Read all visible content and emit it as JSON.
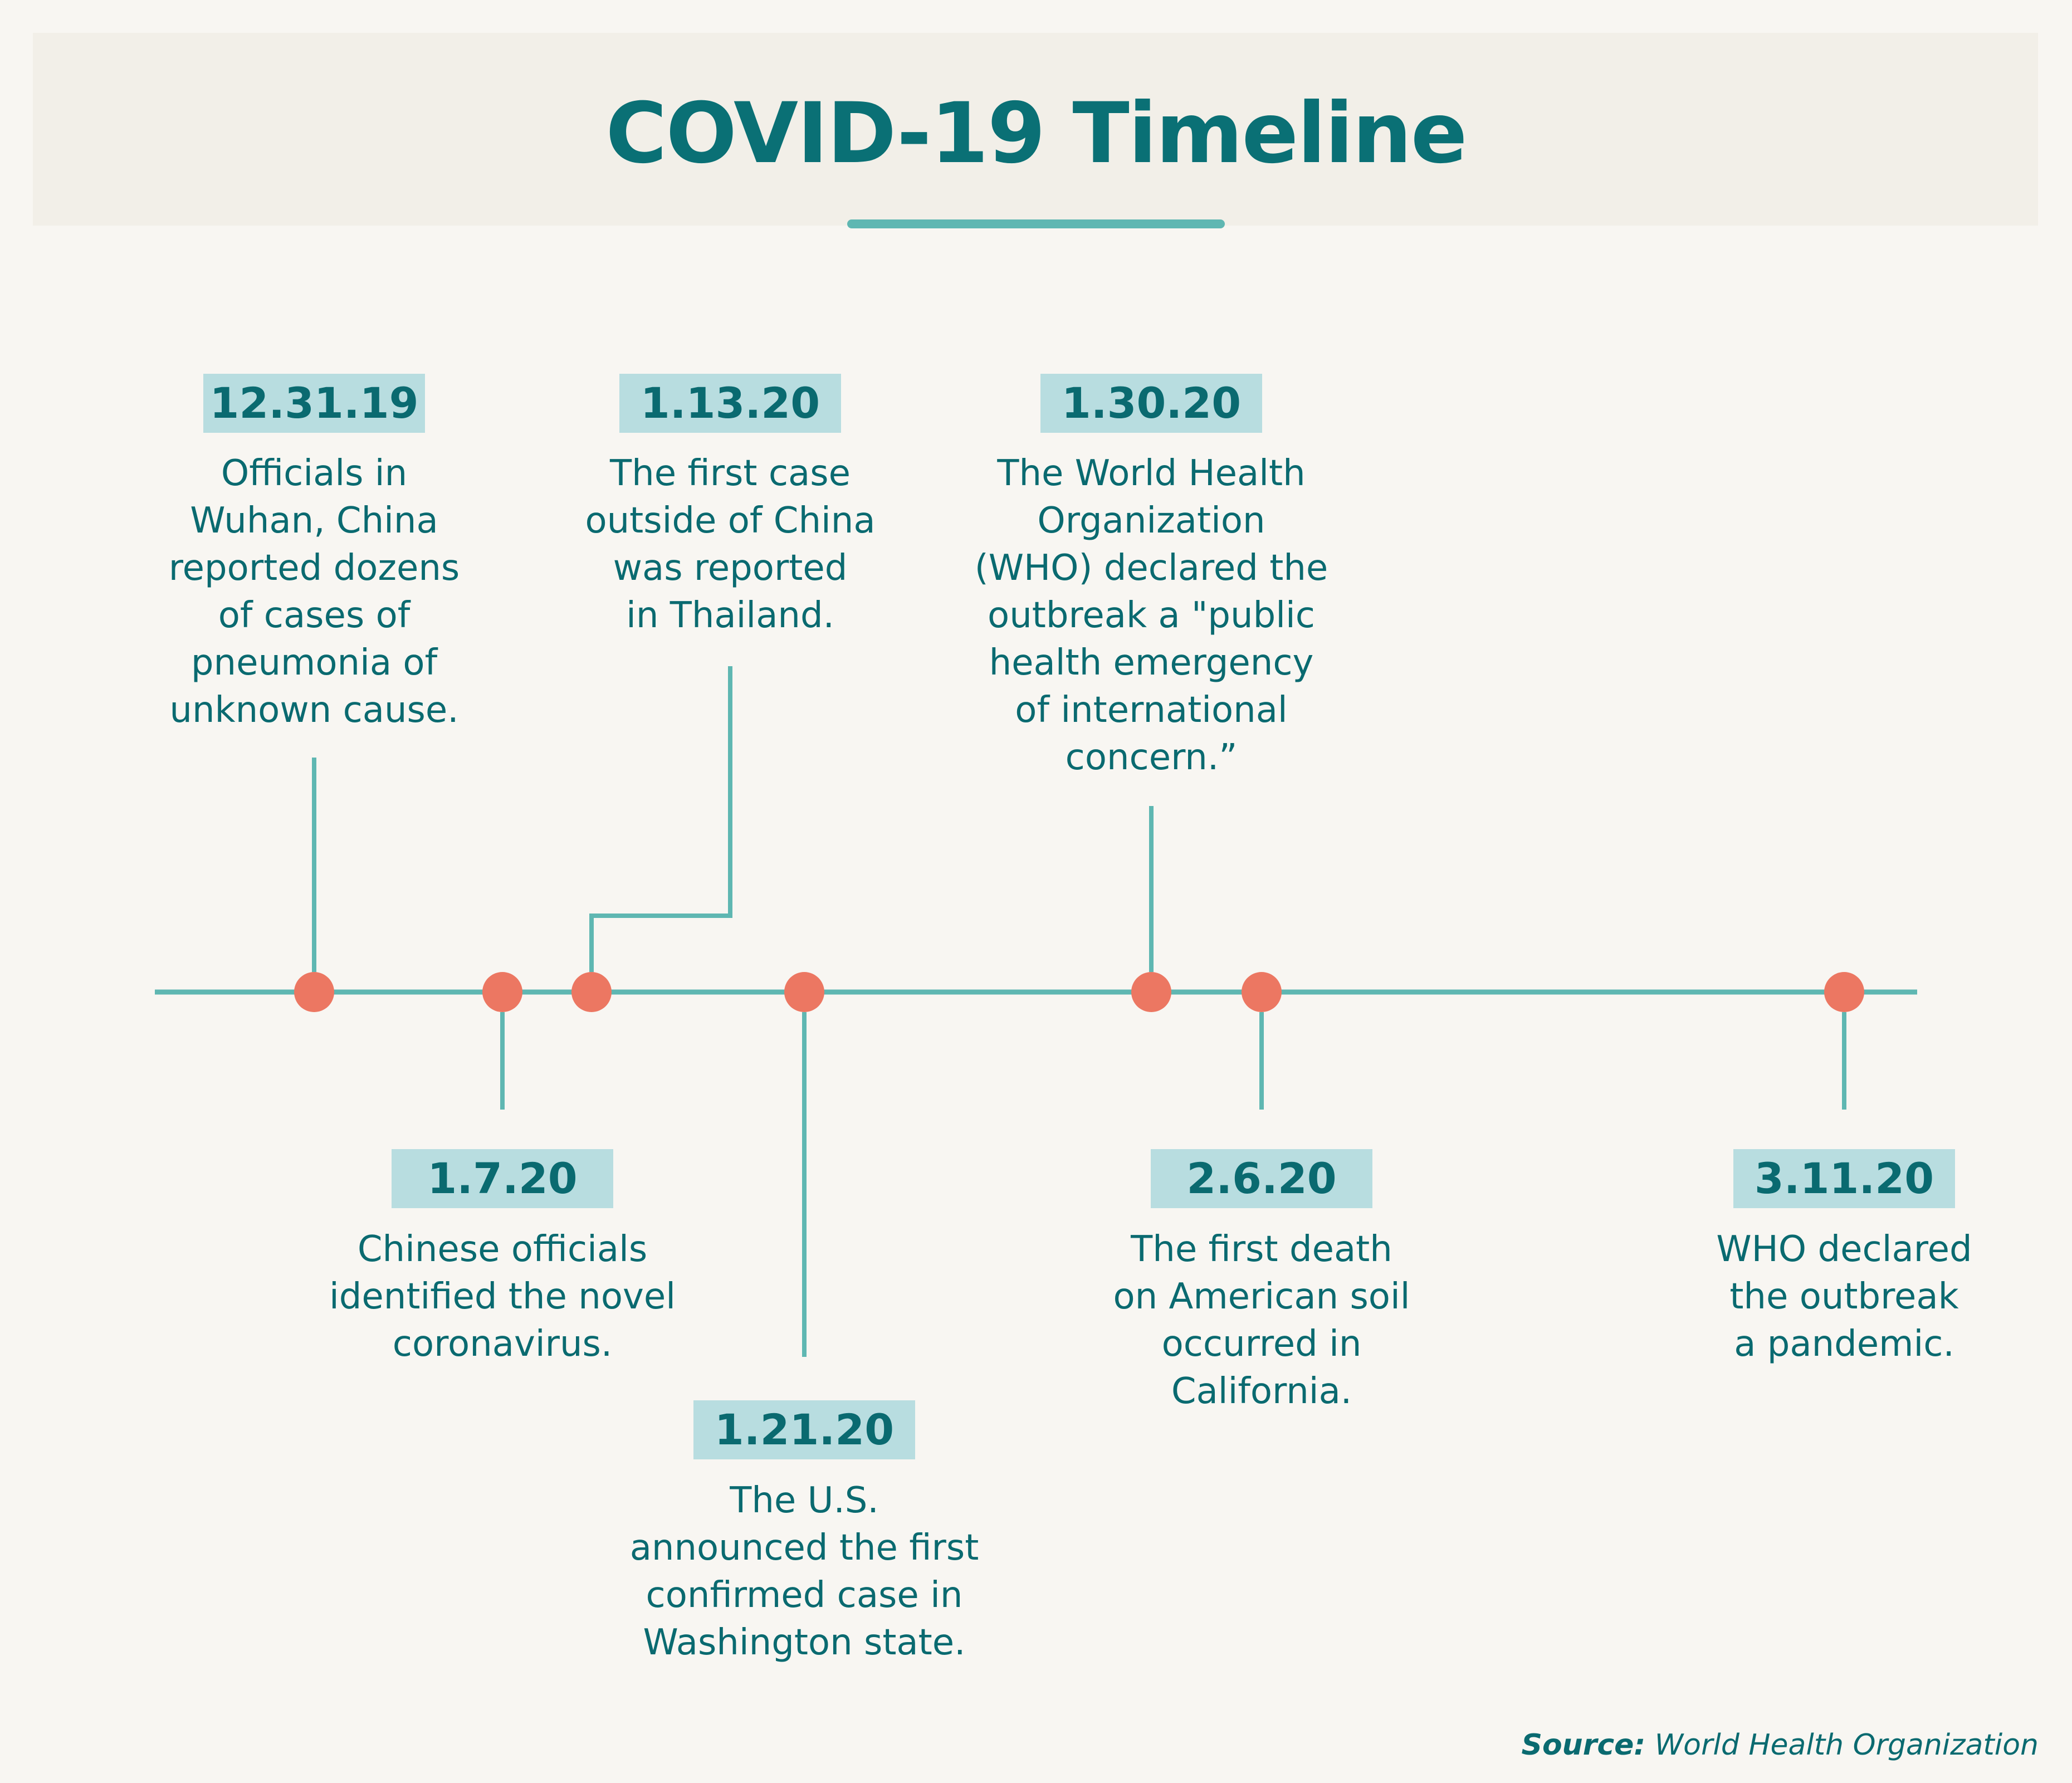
{
  "title": "COVID-19 Timeline",
  "colors": {
    "background": "#f8f6f2",
    "header_band": "#f2efe8",
    "teal_text": "#0a6a70",
    "line": "#5fb7b2",
    "badge": "#b8dde0",
    "dot": "#ec7762"
  },
  "events": [
    {
      "date": "12.31.19",
      "description": "Officials in\nWuhan, China\nreported dozens\nof cases of\npneumonia of\nunknown cause."
    },
    {
      "date": "1.7.20",
      "description": "Chinese officials\nidentified the novel\ncoronavirus."
    },
    {
      "date": "1.13.20",
      "description": "The first case\noutside of China\nwas reported\nin Thailand."
    },
    {
      "date": "1.21.20",
      "description": "The U.S.\nannounced the first\nconfirmed case in\nWashington state."
    },
    {
      "date": "1.30.20",
      "description": "The World Health\nOrganization\n(WHO) declared the\noutbreak a \"public\nhealth emergency\nof international\nconcern.”"
    },
    {
      "date": "2.6.20",
      "description": "The first death\non American soil\noccurred in\nCalifornia."
    },
    {
      "date": "3.11.20",
      "description": "WHO declared\nthe outbreak\na pandemic."
    }
  ],
  "source": {
    "label": "Source:",
    "text": "World Health Organization"
  }
}
